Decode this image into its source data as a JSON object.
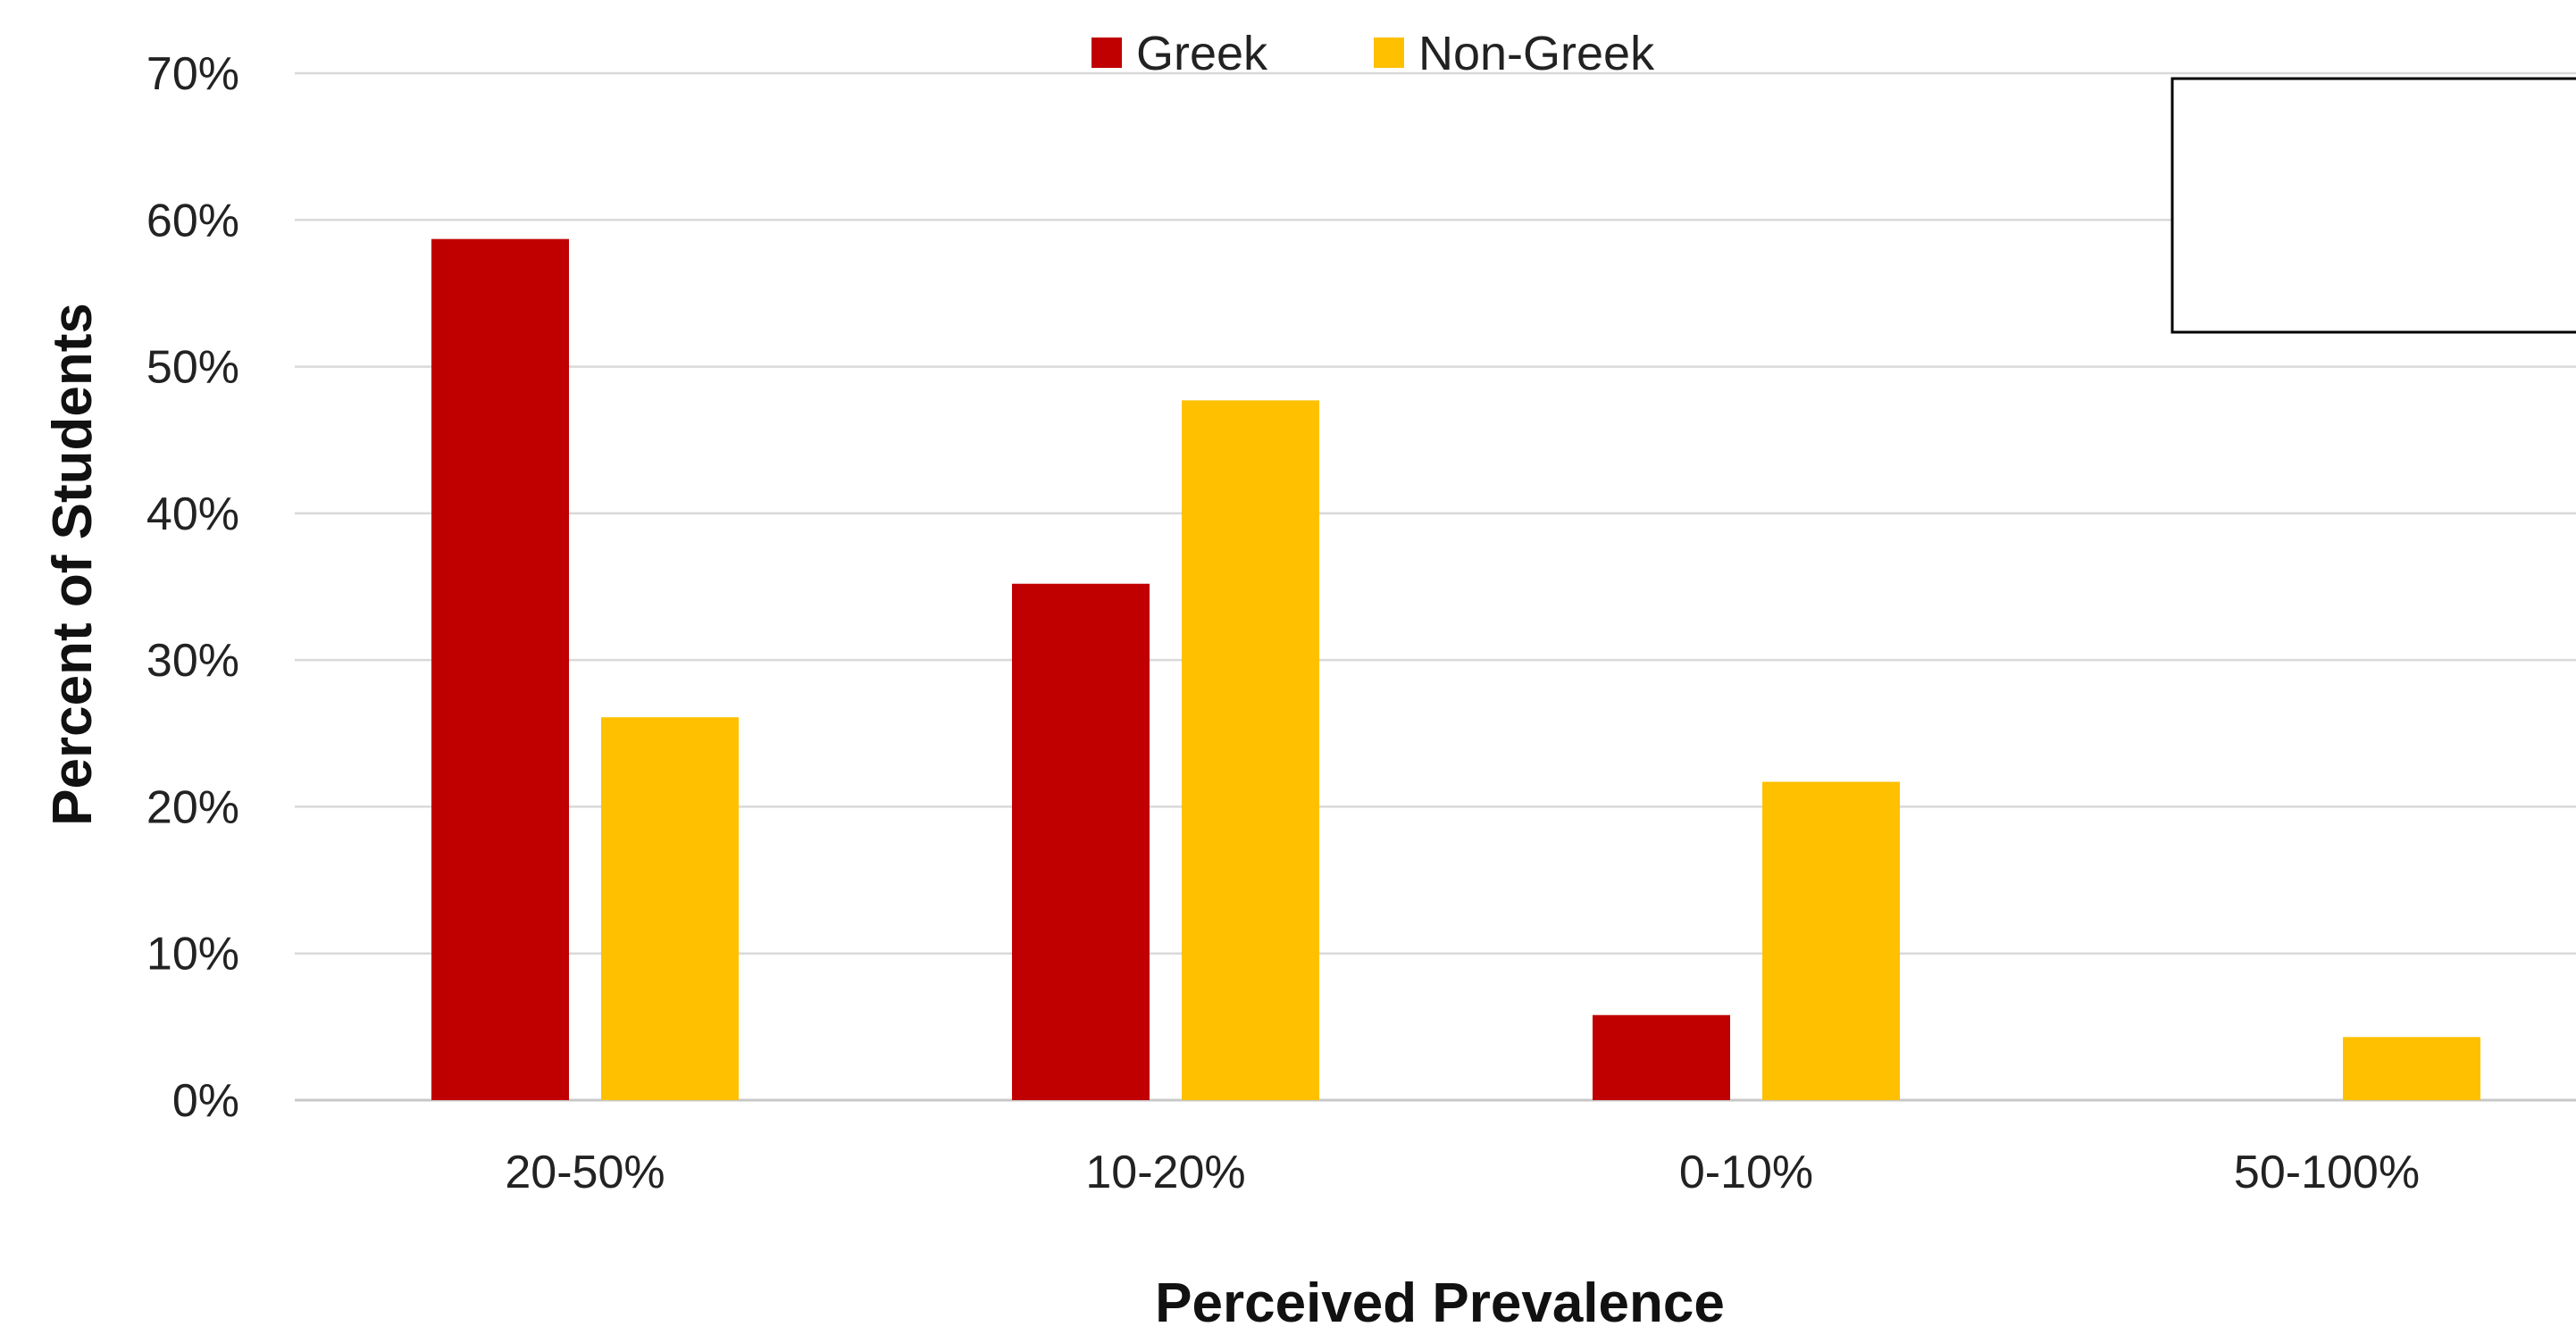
{
  "chart_data": {
    "type": "bar",
    "categories": [
      "20-50%",
      "10-20%",
      "0-10%",
      "50-100%"
    ],
    "series": [
      {
        "name": "Greek",
        "color": "#C00000",
        "values": [
          58.7,
          35.2,
          5.8,
          0
        ]
      },
      {
        "name": "Non-Greek",
        "color": "#FFC000",
        "values": [
          26.1,
          47.7,
          21.7,
          4.3
        ]
      }
    ],
    "yticks": [
      "0%",
      "10%",
      "20%",
      "30%",
      "40%",
      "50%",
      "60%",
      "70%"
    ],
    "ylim": [
      0,
      70
    ],
    "xlabel": "Perceived Prevalence",
    "ylabel": "Percent of Students",
    "grid": true,
    "legend": "top-center"
  }
}
